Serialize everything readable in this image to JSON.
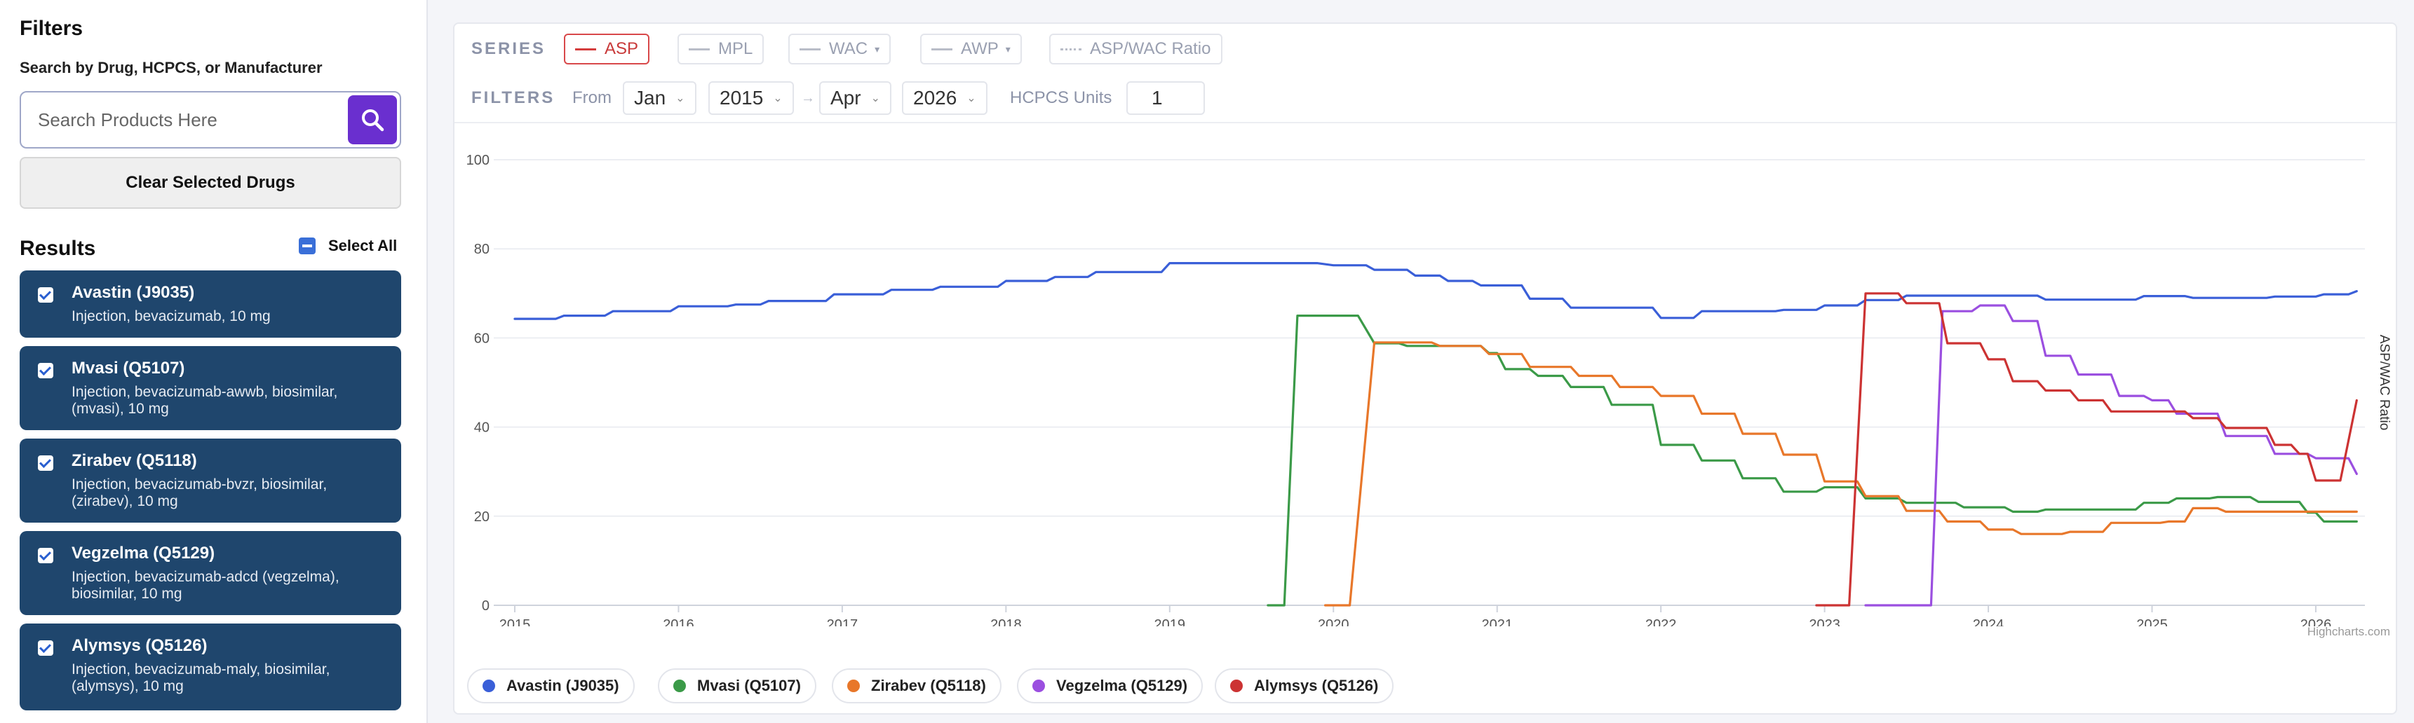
{
  "sidebar": {
    "title": "Filters",
    "search_label": "Search by Drug, HCPCS, or Manufacturer",
    "search_placeholder": "Search Products Here",
    "clear_label": "Clear Selected Drugs",
    "results_title": "Results",
    "select_all_label": "Select All",
    "results": [
      {
        "name": "Avastin (J9035)",
        "desc": "Injection, bevacizumab, 10 mg"
      },
      {
        "name": "Mvasi (Q5107)",
        "desc": "Injection, bevacizumab-awwb, biosimilar, (mvasi), 10 mg"
      },
      {
        "name": "Zirabev (Q5118)",
        "desc": "Injection, bevacizumab-bvzr, biosimilar, (zirabev), 10 mg"
      },
      {
        "name": "Vegzelma (Q5129)",
        "desc": "Injection, bevacizumab-adcd (vegzelma), biosimilar, 10 mg"
      },
      {
        "name": "Alymsys (Q5126)",
        "desc": "Injection, bevacizumab-maly, biosimilar, (alymsys), 10 mg"
      }
    ]
  },
  "toolbar": {
    "series_label": "SERIES",
    "series": [
      {
        "label": "ASP",
        "active": true,
        "dropdown": false
      },
      {
        "label": "MPL",
        "active": false,
        "dropdown": false
      },
      {
        "label": "WAC",
        "active": false,
        "dropdown": true
      },
      {
        "label": "AWP",
        "active": false,
        "dropdown": true
      },
      {
        "label": "ASP/WAC Ratio",
        "active": false,
        "dropdown": false
      }
    ],
    "filters_label": "FILTERS",
    "from_label": "From",
    "from_month": "Jan",
    "from_year": "2015",
    "arrow": "→",
    "to_month": "Apr",
    "to_year": "2026",
    "hcpcs_label": "HCPCS Units",
    "hcpcs_value": "1"
  },
  "chart_data": {
    "type": "line",
    "yticks": [
      "0",
      "20",
      "40",
      "60",
      "80",
      "100"
    ],
    "ylim": [
      0,
      100
    ],
    "xlim": [
      2015.0,
      2026.3
    ],
    "xticks": [
      "2015",
      "2016",
      "2017",
      "2018",
      "2019",
      "2020",
      "2021",
      "2022",
      "2023",
      "2024",
      "2025",
      "2026"
    ],
    "ylabel_right": "ASP/WAC Ratio",
    "credit": "Highcharts.com",
    "grid": true,
    "series": [
      {
        "name": "Avastin (J9035)",
        "color": "#3a5fd8",
        "points": [
          [
            2015.0,
            64.3
          ],
          [
            2015.25,
            64.3
          ],
          [
            2015.3,
            65.0
          ],
          [
            2015.55,
            65.0
          ],
          [
            2015.6,
            66.0
          ],
          [
            2015.95,
            66.0
          ],
          [
            2016.0,
            67.1
          ],
          [
            2016.3,
            67.1
          ],
          [
            2016.35,
            67.5
          ],
          [
            2016.5,
            67.5
          ],
          [
            2016.55,
            68.3
          ],
          [
            2016.9,
            68.3
          ],
          [
            2016.95,
            69.8
          ],
          [
            2017.25,
            69.8
          ],
          [
            2017.3,
            70.8
          ],
          [
            2017.55,
            70.8
          ],
          [
            2017.6,
            71.5
          ],
          [
            2017.95,
            71.5
          ],
          [
            2018.0,
            72.8
          ],
          [
            2018.25,
            72.8
          ],
          [
            2018.3,
            73.7
          ],
          [
            2018.5,
            73.7
          ],
          [
            2018.55,
            74.8
          ],
          [
            2018.95,
            74.8
          ],
          [
            2019.0,
            76.8
          ],
          [
            2019.9,
            76.8
          ],
          [
            2020.0,
            76.3
          ],
          [
            2020.2,
            76.3
          ],
          [
            2020.25,
            75.3
          ],
          [
            2020.45,
            75.3
          ],
          [
            2020.5,
            74.0
          ],
          [
            2020.65,
            74.0
          ],
          [
            2020.7,
            72.8
          ],
          [
            2020.85,
            72.8
          ],
          [
            2020.9,
            71.8
          ],
          [
            2021.15,
            71.8
          ],
          [
            2021.2,
            68.8
          ],
          [
            2021.4,
            68.8
          ],
          [
            2021.45,
            66.8
          ],
          [
            2021.95,
            66.8
          ],
          [
            2022.0,
            64.5
          ],
          [
            2022.2,
            64.5
          ],
          [
            2022.25,
            66.0
          ],
          [
            2022.7,
            66.0
          ],
          [
            2022.75,
            66.3
          ],
          [
            2022.95,
            66.3
          ],
          [
            2023.0,
            67.3
          ],
          [
            2023.2,
            67.3
          ],
          [
            2023.25,
            68.5
          ],
          [
            2023.45,
            68.5
          ],
          [
            2023.5,
            69.5
          ],
          [
            2024.3,
            69.5
          ],
          [
            2024.35,
            68.6
          ],
          [
            2024.9,
            68.6
          ],
          [
            2024.95,
            69.4
          ],
          [
            2025.2,
            69.4
          ],
          [
            2025.25,
            69.0
          ],
          [
            2025.7,
            69.0
          ],
          [
            2025.75,
            69.3
          ],
          [
            2026.0,
            69.3
          ],
          [
            2026.05,
            69.8
          ],
          [
            2026.2,
            69.8
          ],
          [
            2026.25,
            70.5
          ]
        ]
      },
      {
        "name": "Mvasi (Q5107)",
        "color": "#3b9a48",
        "points": [
          [
            2019.6,
            0
          ],
          [
            2019.7,
            0
          ],
          [
            2019.78,
            65.0
          ],
          [
            2020.15,
            65.0
          ],
          [
            2020.25,
            58.8
          ],
          [
            2020.4,
            58.8
          ],
          [
            2020.45,
            58.2
          ],
          [
            2020.9,
            58.2
          ],
          [
            2020.95,
            56.6
          ],
          [
            2021.0,
            56.6
          ],
          [
            2021.05,
            53.0
          ],
          [
            2021.2,
            53.0
          ],
          [
            2021.25,
            51.5
          ],
          [
            2021.4,
            51.5
          ],
          [
            2021.45,
            49.0
          ],
          [
            2021.65,
            49.0
          ],
          [
            2021.7,
            45.0
          ],
          [
            2021.95,
            45.0
          ],
          [
            2022.0,
            36.0
          ],
          [
            2022.2,
            36.0
          ],
          [
            2022.25,
            32.5
          ],
          [
            2022.45,
            32.5
          ],
          [
            2022.5,
            28.5
          ],
          [
            2022.7,
            28.5
          ],
          [
            2022.75,
            25.5
          ],
          [
            2022.95,
            25.5
          ],
          [
            2023.0,
            26.5
          ],
          [
            2023.2,
            26.5
          ],
          [
            2023.25,
            24.0
          ],
          [
            2023.45,
            24.0
          ],
          [
            2023.5,
            23.0
          ],
          [
            2023.8,
            23.0
          ],
          [
            2023.85,
            22.0
          ],
          [
            2024.1,
            22.0
          ],
          [
            2024.15,
            21.0
          ],
          [
            2024.3,
            21.0
          ],
          [
            2024.35,
            21.5
          ],
          [
            2024.9,
            21.5
          ],
          [
            2024.95,
            23.0
          ],
          [
            2025.1,
            23.0
          ],
          [
            2025.15,
            24.0
          ],
          [
            2025.35,
            24.0
          ],
          [
            2025.4,
            24.3
          ],
          [
            2025.6,
            24.3
          ],
          [
            2025.65,
            23.2
          ],
          [
            2025.9,
            23.2
          ],
          [
            2025.95,
            20.8
          ],
          [
            2026.0,
            20.8
          ],
          [
            2026.05,
            18.8
          ],
          [
            2026.25,
            18.8
          ]
        ]
      },
      {
        "name": "Zirabev (Q5118)",
        "color": "#e8772a",
        "points": [
          [
            2019.95,
            0
          ],
          [
            2020.1,
            0
          ],
          [
            2020.25,
            59.0
          ],
          [
            2020.6,
            59.0
          ],
          [
            2020.65,
            58.2
          ],
          [
            2020.9,
            58.2
          ],
          [
            2020.95,
            56.4
          ],
          [
            2021.15,
            56.4
          ],
          [
            2021.2,
            53.5
          ],
          [
            2021.45,
            53.5
          ],
          [
            2021.5,
            51.5
          ],
          [
            2021.7,
            51.5
          ],
          [
            2021.75,
            49.0
          ],
          [
            2021.95,
            49.0
          ],
          [
            2022.0,
            47.0
          ],
          [
            2022.2,
            47.0
          ],
          [
            2022.25,
            43.0
          ],
          [
            2022.45,
            43.0
          ],
          [
            2022.5,
            38.5
          ],
          [
            2022.7,
            38.5
          ],
          [
            2022.75,
            33.8
          ],
          [
            2022.95,
            33.8
          ],
          [
            2023.0,
            27.8
          ],
          [
            2023.2,
            27.8
          ],
          [
            2023.25,
            24.5
          ],
          [
            2023.45,
            24.5
          ],
          [
            2023.5,
            21.2
          ],
          [
            2023.7,
            21.2
          ],
          [
            2023.75,
            18.8
          ],
          [
            2023.95,
            18.8
          ],
          [
            2024.0,
            17.0
          ],
          [
            2024.15,
            17.0
          ],
          [
            2024.2,
            16.0
          ],
          [
            2024.45,
            16.0
          ],
          [
            2024.5,
            16.5
          ],
          [
            2024.7,
            16.5
          ],
          [
            2024.75,
            18.5
          ],
          [
            2025.05,
            18.5
          ],
          [
            2025.1,
            18.8
          ],
          [
            2025.2,
            18.8
          ],
          [
            2025.25,
            21.8
          ],
          [
            2025.4,
            21.8
          ],
          [
            2025.45,
            21.0
          ],
          [
            2026.25,
            21.0
          ]
        ]
      },
      {
        "name": "Vegzelma (Q5129)",
        "color": "#9b4fe0",
        "points": [
          [
            2023.25,
            0
          ],
          [
            2023.65,
            0
          ],
          [
            2023.72,
            66.0
          ],
          [
            2023.9,
            66.0
          ],
          [
            2023.95,
            67.3
          ],
          [
            2024.1,
            67.3
          ],
          [
            2024.15,
            63.8
          ],
          [
            2024.3,
            63.8
          ],
          [
            2024.35,
            56.0
          ],
          [
            2024.5,
            56.0
          ],
          [
            2024.55,
            51.8
          ],
          [
            2024.75,
            51.8
          ],
          [
            2024.8,
            47.0
          ],
          [
            2024.95,
            47.0
          ],
          [
            2025.0,
            46.0
          ],
          [
            2025.1,
            46.0
          ],
          [
            2025.15,
            43.0
          ],
          [
            2025.4,
            43.0
          ],
          [
            2025.45,
            38.0
          ],
          [
            2025.7,
            38.0
          ],
          [
            2025.75,
            34.0
          ],
          [
            2025.95,
            34.0
          ],
          [
            2026.0,
            33.0
          ],
          [
            2026.2,
            33.0
          ],
          [
            2026.25,
            29.5
          ]
        ]
      },
      {
        "name": "Alymsys (Q5126)",
        "color": "#cc3333",
        "points": [
          [
            2022.95,
            0
          ],
          [
            2023.15,
            0
          ],
          [
            2023.25,
            70.0
          ],
          [
            2023.45,
            70.0
          ],
          [
            2023.5,
            67.8
          ],
          [
            2023.7,
            67.8
          ],
          [
            2023.75,
            58.8
          ],
          [
            2023.95,
            58.8
          ],
          [
            2024.0,
            55.2
          ],
          [
            2024.1,
            55.2
          ],
          [
            2024.15,
            50.3
          ],
          [
            2024.3,
            50.3
          ],
          [
            2024.35,
            48.2
          ],
          [
            2024.5,
            48.2
          ],
          [
            2024.55,
            46.0
          ],
          [
            2024.7,
            46.0
          ],
          [
            2024.75,
            43.5
          ],
          [
            2025.2,
            43.5
          ],
          [
            2025.25,
            42.0
          ],
          [
            2025.4,
            42.0
          ],
          [
            2025.45,
            39.8
          ],
          [
            2025.7,
            39.8
          ],
          [
            2025.75,
            36.0
          ],
          [
            2025.85,
            36.0
          ],
          [
            2025.9,
            34.0
          ],
          [
            2025.95,
            34.0
          ],
          [
            2026.0,
            28.0
          ],
          [
            2026.15,
            28.0
          ],
          [
            2026.25,
            46.0
          ]
        ]
      }
    ]
  }
}
